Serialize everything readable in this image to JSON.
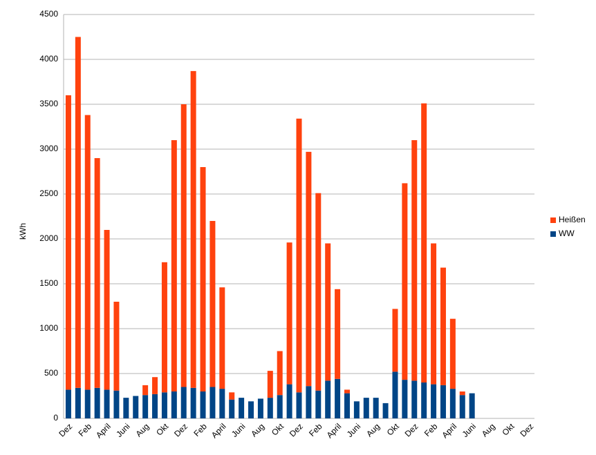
{
  "chart_data": {
    "type": "stacked_bar",
    "y_label": "kWh",
    "categories": [
      "Dez",
      null,
      "Feb",
      null,
      "April",
      null,
      "Juni",
      null,
      "Aug",
      null,
      "Okt",
      null,
      "Dez",
      null,
      "Feb",
      null,
      "April",
      null,
      "Juni",
      null,
      "Aug",
      null,
      "Okt",
      null,
      "Dez",
      null,
      "Feb",
      null,
      "April",
      null,
      "Juni",
      null,
      "Aug",
      null,
      "Okt",
      null,
      "Dez",
      null,
      "Feb",
      null,
      "April",
      null,
      "Juni",
      null,
      "Aug",
      null,
      "Okt",
      null,
      "Dez"
    ],
    "series": [
      {
        "name": "WW",
        "color": "#004586",
        "values": [
          320,
          340,
          320,
          340,
          320,
          310,
          230,
          250,
          260,
          270,
          290,
          300,
          350,
          340,
          300,
          350,
          330,
          210,
          230,
          190,
          220,
          230,
          260,
          380,
          290,
          360,
          310,
          420,
          440,
          280,
          190,
          230,
          230,
          170,
          520,
          430,
          420,
          400,
          380,
          370,
          330,
          260,
          280,
          0,
          0,
          0,
          0,
          0,
          0
        ]
      },
      {
        "name": "Heißen",
        "color": "#ff420e",
        "values": [
          3280,
          3910,
          3060,
          2560,
          1780,
          990,
          0,
          0,
          110,
          190,
          1450,
          2800,
          3150,
          3530,
          2500,
          1850,
          1130,
          80,
          0,
          0,
          0,
          300,
          490,
          1580,
          3050,
          2610,
          2200,
          1530,
          1000,
          40,
          0,
          0,
          0,
          0,
          700,
          2190,
          2680,
          3110,
          1570,
          1310,
          780,
          40,
          0,
          0,
          0,
          0,
          0,
          0,
          0
        ]
      }
    ],
    "ylim": [
      0,
      4500
    ],
    "yticks": [
      0,
      500,
      1000,
      1500,
      2000,
      2500,
      3000,
      3500,
      4000,
      4500
    ],
    "grid": true,
    "legend": "right"
  }
}
